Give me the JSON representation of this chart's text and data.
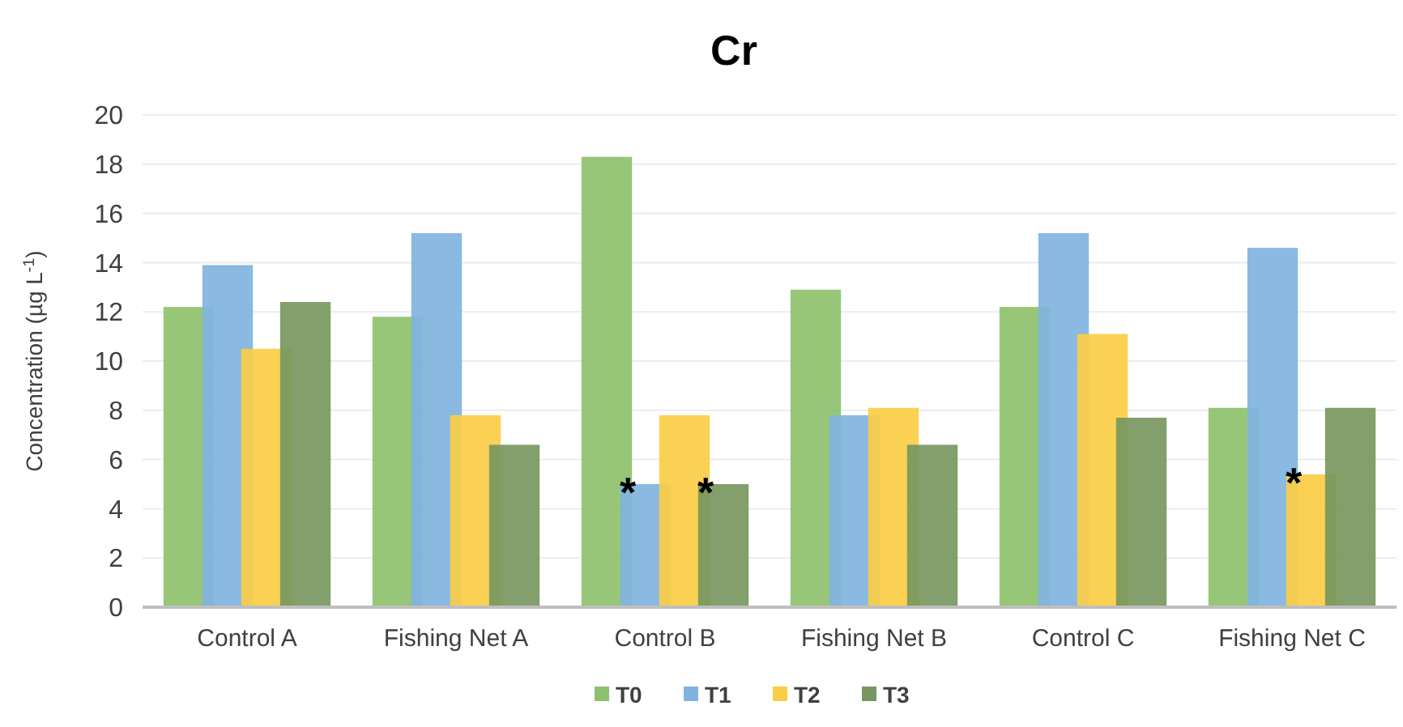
{
  "chart_data": {
    "type": "bar",
    "title": "Cr",
    "ylabel": "Concentration (µg L$^{-1}$)",
    "categories": [
      "Control A",
      "Fishing Net A",
      "Control B",
      "Fishing Net B",
      "Control C",
      "Fishing Net C"
    ],
    "series": [
      {
        "name": "T0",
        "color": "#8fc16e",
        "values": [
          12.2,
          11.8,
          18.3,
          12.9,
          12.2,
          8.1
        ]
      },
      {
        "name": "T1",
        "color": "#80b3e0",
        "values": [
          13.9,
          15.2,
          5.0,
          7.8,
          15.2,
          14.6
        ]
      },
      {
        "name": "T2",
        "color": "#fbcd45",
        "values": [
          10.5,
          7.8,
          7.8,
          8.1,
          11.1,
          5.4
        ]
      },
      {
        "name": "T3",
        "color": "#779760",
        "values": [
          12.4,
          6.6,
          5.0,
          6.6,
          7.7,
          8.1
        ]
      }
    ],
    "ylim": [
      0,
      20
    ],
    "yticks": [
      0,
      2,
      4,
      6,
      8,
      10,
      12,
      14,
      16,
      18,
      20
    ],
    "grid": "y",
    "legend": "bottom",
    "annotations": [
      {
        "text": "*",
        "x": "Control B",
        "y": 5.0
      },
      {
        "text": "*",
        "x": "Control B",
        "y": 5.0
      },
      {
        "text": "*",
        "x": "Fishing Net C",
        "y": 5.4
      }
    ]
  }
}
